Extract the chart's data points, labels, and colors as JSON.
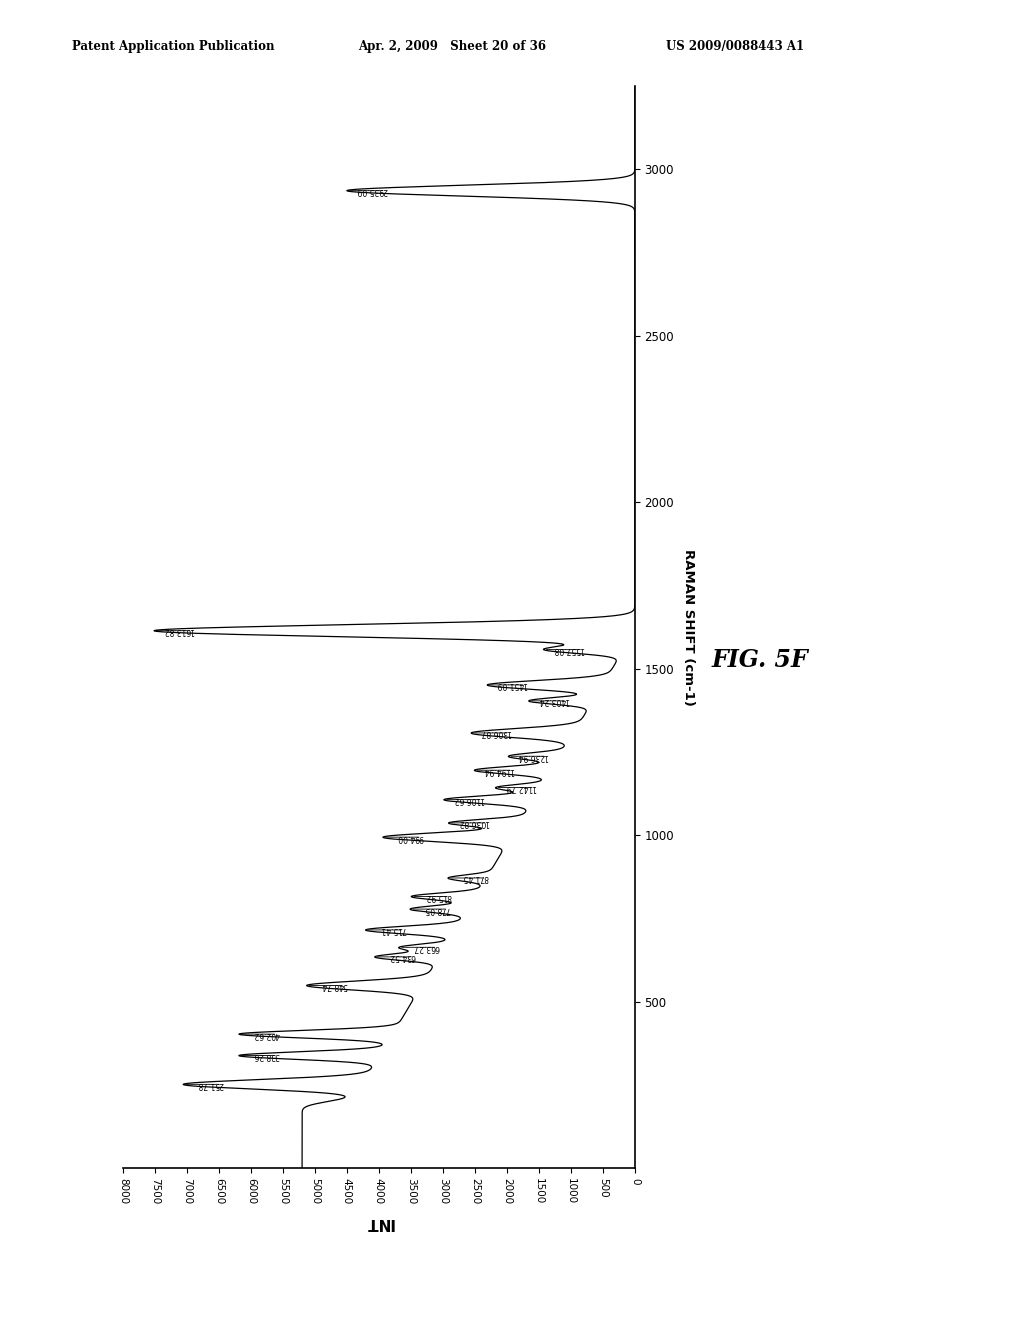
{
  "title_header": "Patent Application Publication",
  "date_header": "Apr. 2, 2009   Sheet 20 of 36",
  "patent_header": "US 2009/0088443 A1",
  "figure_label": "FIG. 5F",
  "xlabel": "INT",
  "ylabel": "RAMAN SHIFT (cm-1)",
  "xmin": 0,
  "xmax": 8000,
  "ymin": 0,
  "ymax": 3250,
  "xticks": [
    0,
    500,
    1000,
    1500,
    2000,
    2500,
    3000,
    3500,
    4000,
    4500,
    5000,
    5500,
    6000,
    6500,
    7000,
    7500,
    8000
  ],
  "yticks": [
    500,
    1000,
    1500,
    2000,
    2500,
    3000
  ],
  "peak_labels": [
    "251.78",
    "338.26",
    "402.62",
    "548.74",
    "634.52",
    "663.27",
    "715.41",
    "778.05",
    "815.92",
    "871.45",
    "994.00",
    "1036.82",
    "1106.62",
    "1142.79",
    "1194.94",
    "1236.94",
    "1306.87",
    "1403.24",
    "1451.09",
    "1557.08",
    "1613.82",
    "2935.09"
  ],
  "peak_positions": [
    251.78,
    338.26,
    402.62,
    548.74,
    634.52,
    663.27,
    715.41,
    778.05,
    815.92,
    871.45,
    994.0,
    1036.82,
    1106.62,
    1142.79,
    1194.94,
    1236.94,
    1306.87,
    1403.24,
    1451.09,
    1557.08,
    1613.82,
    2935.09
  ],
  "peak_heights": [
    2800,
    2200,
    2400,
    1800,
    1000,
    700,
    1400,
    900,
    1000,
    600,
    2000,
    1100,
    1400,
    700,
    1200,
    800,
    1600,
    1000,
    1800,
    1200,
    7500,
    4500
  ],
  "peak_widths": [
    14,
    11,
    11,
    13,
    10,
    9,
    11,
    10,
    10,
    9,
    13,
    10,
    11,
    9,
    11,
    10,
    13,
    10,
    13,
    11,
    18,
    16
  ],
  "baseline_high": 5200,
  "baseline_transition_y": 1650,
  "background_color": "#ffffff",
  "line_color": "#000000",
  "header_left": "Patent Application Publication",
  "header_mid": "Apr. 2, 2009   Sheet 20 of 36",
  "header_right": "US 2009/0088443 A1"
}
